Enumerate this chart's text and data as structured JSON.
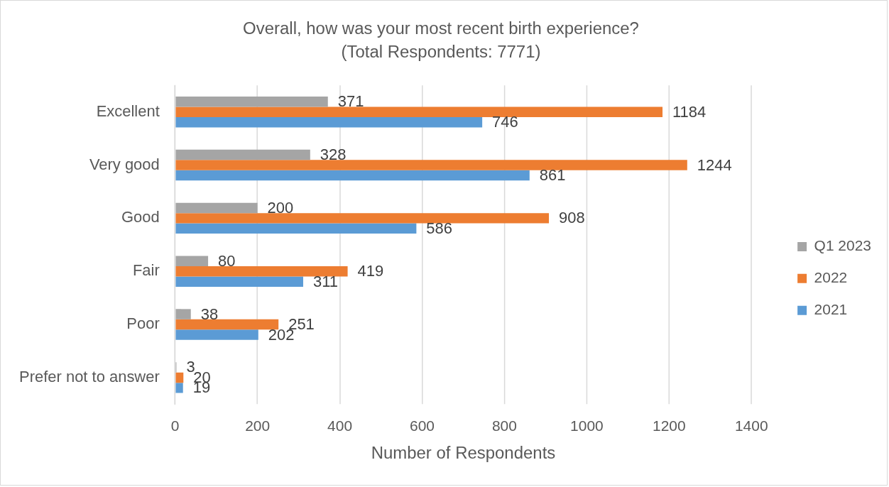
{
  "chart_data": {
    "type": "bar",
    "orientation": "horizontal",
    "title": "Overall, how was your most recent birth experience?",
    "subtitle": "(Total Respondents: 7771)",
    "xlabel": "Number of Respondents",
    "categories": [
      "Excellent",
      "Very good",
      "Good",
      "Fair",
      "Poor",
      "Prefer not to answer"
    ],
    "series": [
      {
        "name": "Q1 2023",
        "color": "#a5a5a5",
        "values": [
          371,
          328,
          200,
          80,
          38,
          3
        ]
      },
      {
        "name": "2022",
        "color": "#ed7d31",
        "values": [
          1184,
          1244,
          908,
          419,
          251,
          20
        ]
      },
      {
        "name": "2021",
        "color": "#5b9bd5",
        "values": [
          746,
          861,
          586,
          311,
          202,
          19
        ]
      }
    ],
    "xlim": [
      0,
      1400
    ],
    "xticks": [
      0,
      200,
      400,
      600,
      800,
      1000,
      1200,
      1400
    ],
    "grid": "x",
    "legend": "right",
    "data_labels": true
  }
}
